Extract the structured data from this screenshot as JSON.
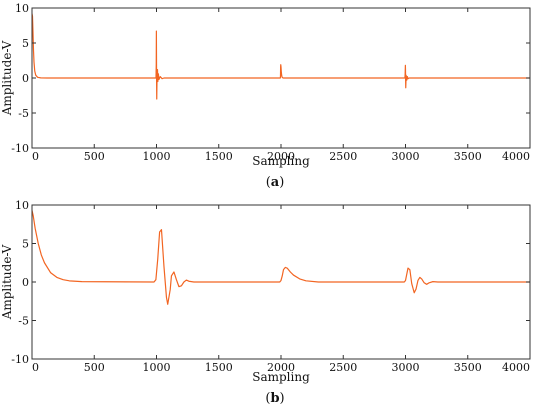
{
  "chart_data": [
    {
      "type": "line",
      "panel_label": "a",
      "xlabel": "Sampling",
      "ylabel": "Amplitude-V",
      "xlim": [
        0,
        4000
      ],
      "ylim": [
        -10,
        10
      ],
      "xticks": [
        0,
        500,
        1000,
        1500,
        2000,
        2500,
        3000,
        3500,
        4000
      ],
      "yticks": [
        10,
        5,
        0,
        -5,
        -10
      ],
      "grid": false,
      "series": [
        {
          "color": "#f26522",
          "x": [
            0,
            4,
            8,
            12,
            16,
            22,
            30,
            45,
            70,
            120,
            300,
            990,
            996,
            998,
            999,
            1000,
            1001,
            1002,
            1003,
            1005,
            1008,
            1011,
            1015,
            1020,
            1030,
            1045,
            1060,
            1100,
            1995,
            1996,
            1997,
            1998,
            2000,
            2002,
            2004,
            2006,
            2008,
            2012,
            2016,
            2020,
            2030,
            2060,
            2995,
            2997,
            2999,
            3000,
            3001,
            3002,
            3003,
            3005,
            3010,
            3015,
            3020,
            3030,
            3060,
            4000
          ],
          "y": [
            9.2,
            8.8,
            6.5,
            4.0,
            2.3,
            1.0,
            0.4,
            0.1,
            0.02,
            0.0,
            0.0,
            0.0,
            0.0,
            2.0,
            6.7,
            3.0,
            -1.0,
            -3.0,
            -1.5,
            0.6,
            1.2,
            -0.5,
            0.6,
            -0.2,
            0.2,
            -0.1,
            0.0,
            0.0,
            0.0,
            0.4,
            1.6,
            1.9,
            1.6,
            1.0,
            0.6,
            0.3,
            0.15,
            0.05,
            0.02,
            0.0,
            0.0,
            0.0,
            0.0,
            0.5,
            1.8,
            1.2,
            -0.3,
            -1.4,
            -0.8,
            0.4,
            -0.3,
            0.2,
            -0.1,
            0.0,
            0.0,
            0.0
          ]
        }
      ]
    },
    {
      "type": "line",
      "panel_label": "b",
      "xlabel": "Sampling",
      "ylabel": "Amplitude-V",
      "xlim": [
        0,
        4000
      ],
      "ylim": [
        -10,
        10
      ],
      "xticks": [
        0,
        500,
        1000,
        1500,
        2000,
        2500,
        3000,
        3500,
        4000
      ],
      "yticks": [
        10,
        5,
        0,
        -5,
        -10
      ],
      "grid": false,
      "series": [
        {
          "color": "#f26522",
          "x": [
            0,
            10,
            25,
            50,
            75,
            100,
            150,
            200,
            250,
            300,
            400,
            980,
            995,
            1010,
            1025,
            1040,
            1060,
            1080,
            1090,
            1110,
            1120,
            1140,
            1160,
            1180,
            1200,
            1220,
            1240,
            1260,
            1300,
            1350,
            1400,
            1990,
            2000,
            2010,
            2020,
            2035,
            2050,
            2075,
            2100,
            2150,
            2200,
            2300,
            2990,
            3000,
            3020,
            3035,
            3050,
            3070,
            3085,
            3100,
            3115,
            3130,
            3150,
            3170,
            3190,
            3220,
            3260,
            3400,
            4000
          ],
          "y": [
            9.3,
            8.6,
            7.0,
            5.0,
            3.5,
            2.5,
            1.2,
            0.6,
            0.3,
            0.15,
            0.05,
            0.0,
            0.3,
            3.0,
            6.5,
            6.8,
            2.0,
            -2.0,
            -2.9,
            -1.0,
            0.8,
            1.3,
            0.3,
            -0.6,
            -0.5,
            0.0,
            0.25,
            0.1,
            0.0,
            0.0,
            0.0,
            0.0,
            0.2,
            0.8,
            1.6,
            1.9,
            1.8,
            1.3,
            0.9,
            0.4,
            0.15,
            0.0,
            0.0,
            0.2,
            1.8,
            1.6,
            -0.2,
            -1.4,
            -0.9,
            0.2,
            0.6,
            0.4,
            -0.1,
            -0.3,
            -0.1,
            0.05,
            0.0,
            0.0,
            0.0
          ]
        }
      ]
    }
  ]
}
